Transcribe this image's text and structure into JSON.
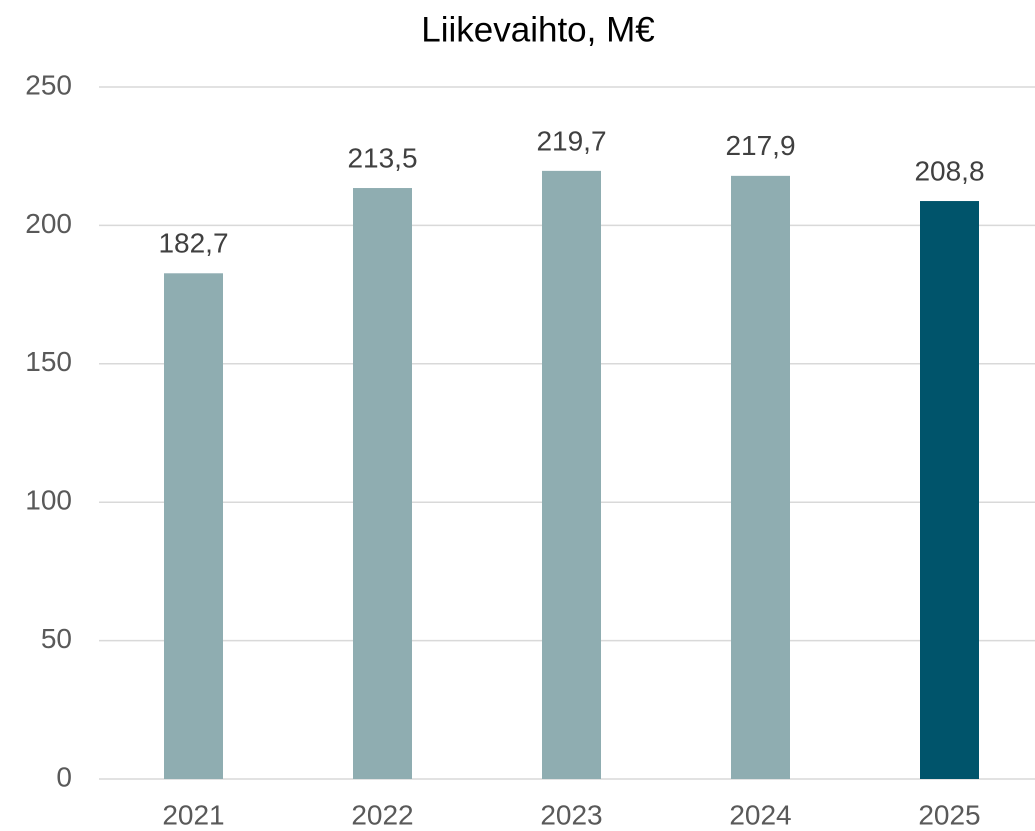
{
  "chart_data": {
    "type": "bar",
    "title": "Liikevaihto, M€",
    "categories": [
      "2021",
      "2022",
      "2023",
      "2024",
      "2025"
    ],
    "values": [
      182.7,
      213.5,
      219.7,
      217.9,
      208.8
    ],
    "value_labels": [
      "182,7",
      "213,5",
      "219,7",
      "217,9",
      "208,8"
    ],
    "colors": [
      "#8fadb1",
      "#8fadb1",
      "#8fadb1",
      "#8fadb1",
      "#00546b"
    ],
    "ylim": [
      0,
      250
    ],
    "yticks": [
      0,
      50,
      100,
      150,
      200,
      250
    ],
    "grid": true
  }
}
